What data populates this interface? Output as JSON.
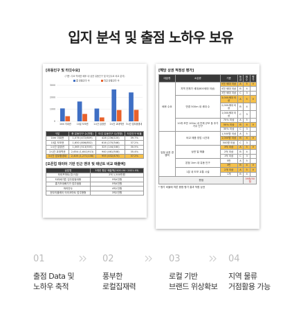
{
  "header": {
    "title": "입지 분석 및 출점 노하우 보유"
  },
  "left_doc": {
    "title": "[유동인구 및 타깃수요]",
    "chart": {
      "type": "bar",
      "subtitle": "(기준: 주요 역세권 배후 내 상권 유동인구 및 타깃수요 비교 분석)",
      "categories": [
        "1km 이내권",
        "10분 도보권",
        "1시간 입영권",
        "2시간 교대역권",
        "3시간 업무환경내"
      ],
      "series": [
        {
          "name": "총 유동인구 수",
          "color": "#3f6fc4",
          "values": [
            1076,
            1650,
            1065,
            2654,
            2405
          ]
        },
        {
          "name": "타깃 유동인구 수",
          "color": "#e8622c",
          "values": [
            428,
            616,
            325,
            940,
            955
          ]
        }
      ],
      "ylim": [
        0,
        3000
      ],
      "yticks": [
        0,
        1000,
        2000,
        3000
      ],
      "grid": true
    },
    "table": {
      "header": [
        "구분",
        "총 유동인구 수(천명)",
        "타깃 유동인구 수(천명)",
        "타깃인구 비율"
      ],
      "rows": [
        [
          "1km 이내권",
          "1,076 (472/609)",
          "428 (236/220)",
          "39.7%"
        ],
        [
          "10분 도보권",
          "1,650 (806/852)",
          "616 (270/346)",
          "37.2%"
        ],
        [
          "1시간 입영권",
          "1,065 (513/555)",
          "325 (144/180)",
          "30.5%"
        ],
        [
          "2시간 교대역권",
          "2,654 (1,641/913)",
          "940 (461/508)",
          "35.4%"
        ],
        [
          "3시간 업무환경내",
          "2,405 (1,271/138)",
          "955 (432/470)",
          "37.2%"
        ]
      ],
      "highlight_row": 4
    },
    "table2_title": "[오픈업 데이터 기반 인근 맨귀 및 태넌트 비교 매출액]",
    "table2": {
      "header": [
        "상호명",
        "3개년 평균 매출액(2020.04~2021.03)"
      ],
      "rows": [
        [
          "타이프마트(주)식당",
          "2억 1,500만원"
        ],
        [
          "타리배기튼 업주밥점대왕",
          "5억4천원"
        ],
        [
          "홍기초대배기가 업주점점",
          "5억4천원"
        ],
        [
          "마리반두",
          "4억1천원"
        ],
        [
          "한우리플레이 타이코마트 업주형형",
          "3억2천원"
        ]
      ]
    }
  },
  "right_doc": {
    "title": "[해당 상권 적정성 평가]",
    "header": [
      "대분류",
      "소분류",
      "기준",
      "등급",
      "점수",
      "평가"
    ],
    "groups": [
      {
        "name": "배후 수요",
        "subs": [
          {
            "name": "지역 전체가 세대(800세대 이상)",
            "rows": [
              {
                "c": "5천 세대 이상",
                "g": "A",
                "s": "5",
                "v": "V"
              },
              {
                "c": "4천 세대 이상",
                "g": "B",
                "s": "4"
              },
              {
                "c": "3천 세대 이상",
                "g": "C",
                "s": "3"
              }
            ]
          },
          {
            "name": "반경 500m 내 세대 수",
            "rows": [
              {
                "c": "3,000세대 이상",
                "g": "A",
                "s": "5",
                "v": "V"
              },
              {
                "c": "2,000세대 이상",
                "g": "B",
                "s": "4"
              },
              {
                "c": "1,000세대 이상",
                "g": "C",
                "s": "3"
              }
            ]
          },
          {
            "name": "10개 초반 100m 내 전체 규모 등 추가 거주 인구",
            "rows": [
              {
                "c": "70% 이상",
                "g": "A",
                "s": "5"
              },
              {
                "c": "50% 이상",
                "g": "B",
                "s": "4",
                "v": "V"
              },
              {
                "c": "30% 이상",
                "g": "C",
                "s": "3"
              }
            ]
          }
        ]
      },
      {
        "name": "입점 상권 경쟁력",
        "subs": [
          {
            "name": "비교 제품 영업 시간대",
            "rows": [
              {
                "c": "1,500명 이상",
                "g": "A",
                "s": "5"
              },
              {
                "c": "1,000명 이상",
                "g": "B",
                "s": "4",
                "v": "V"
              },
              {
                "c": "500명 이상",
                "g": "C",
                "s": "3"
              }
            ]
          },
          {
            "name": "상권 일 매출",
            "rows": [
              {
                "c": "3억 이상",
                "g": "A",
                "s": "5",
                "v": "V"
              },
              {
                "c": "2억 이상",
                "g": "B",
                "s": "4"
              },
              {
                "c": "1억 이상",
                "g": "C",
                "s": "3"
              }
            ]
          },
          {
            "name": "본점 1km 내 유동 인구",
            "rows": [
              {
                "c": "5만",
                "g": "A",
                "s": "5"
              },
              {
                "c": "3만",
                "g": "B",
                "s": "4",
                "v": "V"
              }
            ]
          },
          {
            "name": "1분 내 도보 교통 시설",
            "rows": [
              {
                "c": "2개 이상",
                "g": "A",
                "s": "5",
                "v": "V"
              },
              {
                "c": "1개",
                "g": "B",
                "s": "4"
              }
            ]
          }
        ]
      }
    ],
    "total_label": "총점",
    "total_value": "39점/50점",
    "footnote": "* 평가 비율에 따른 종합 평가 결과 적합 상권"
  },
  "steps": [
    {
      "num": "01",
      "lines": [
        "출점 Data 및",
        "노하우 축적"
      ]
    },
    {
      "num": "02",
      "lines": [
        "풍부한",
        "로컬집재력"
      ]
    },
    {
      "num": "03",
      "lines": [
        "로컬 기반",
        "브랜드 위상확보"
      ]
    },
    {
      "num": "04",
      "lines": [
        "지역 물류",
        "거점활용 가능"
      ]
    }
  ]
}
